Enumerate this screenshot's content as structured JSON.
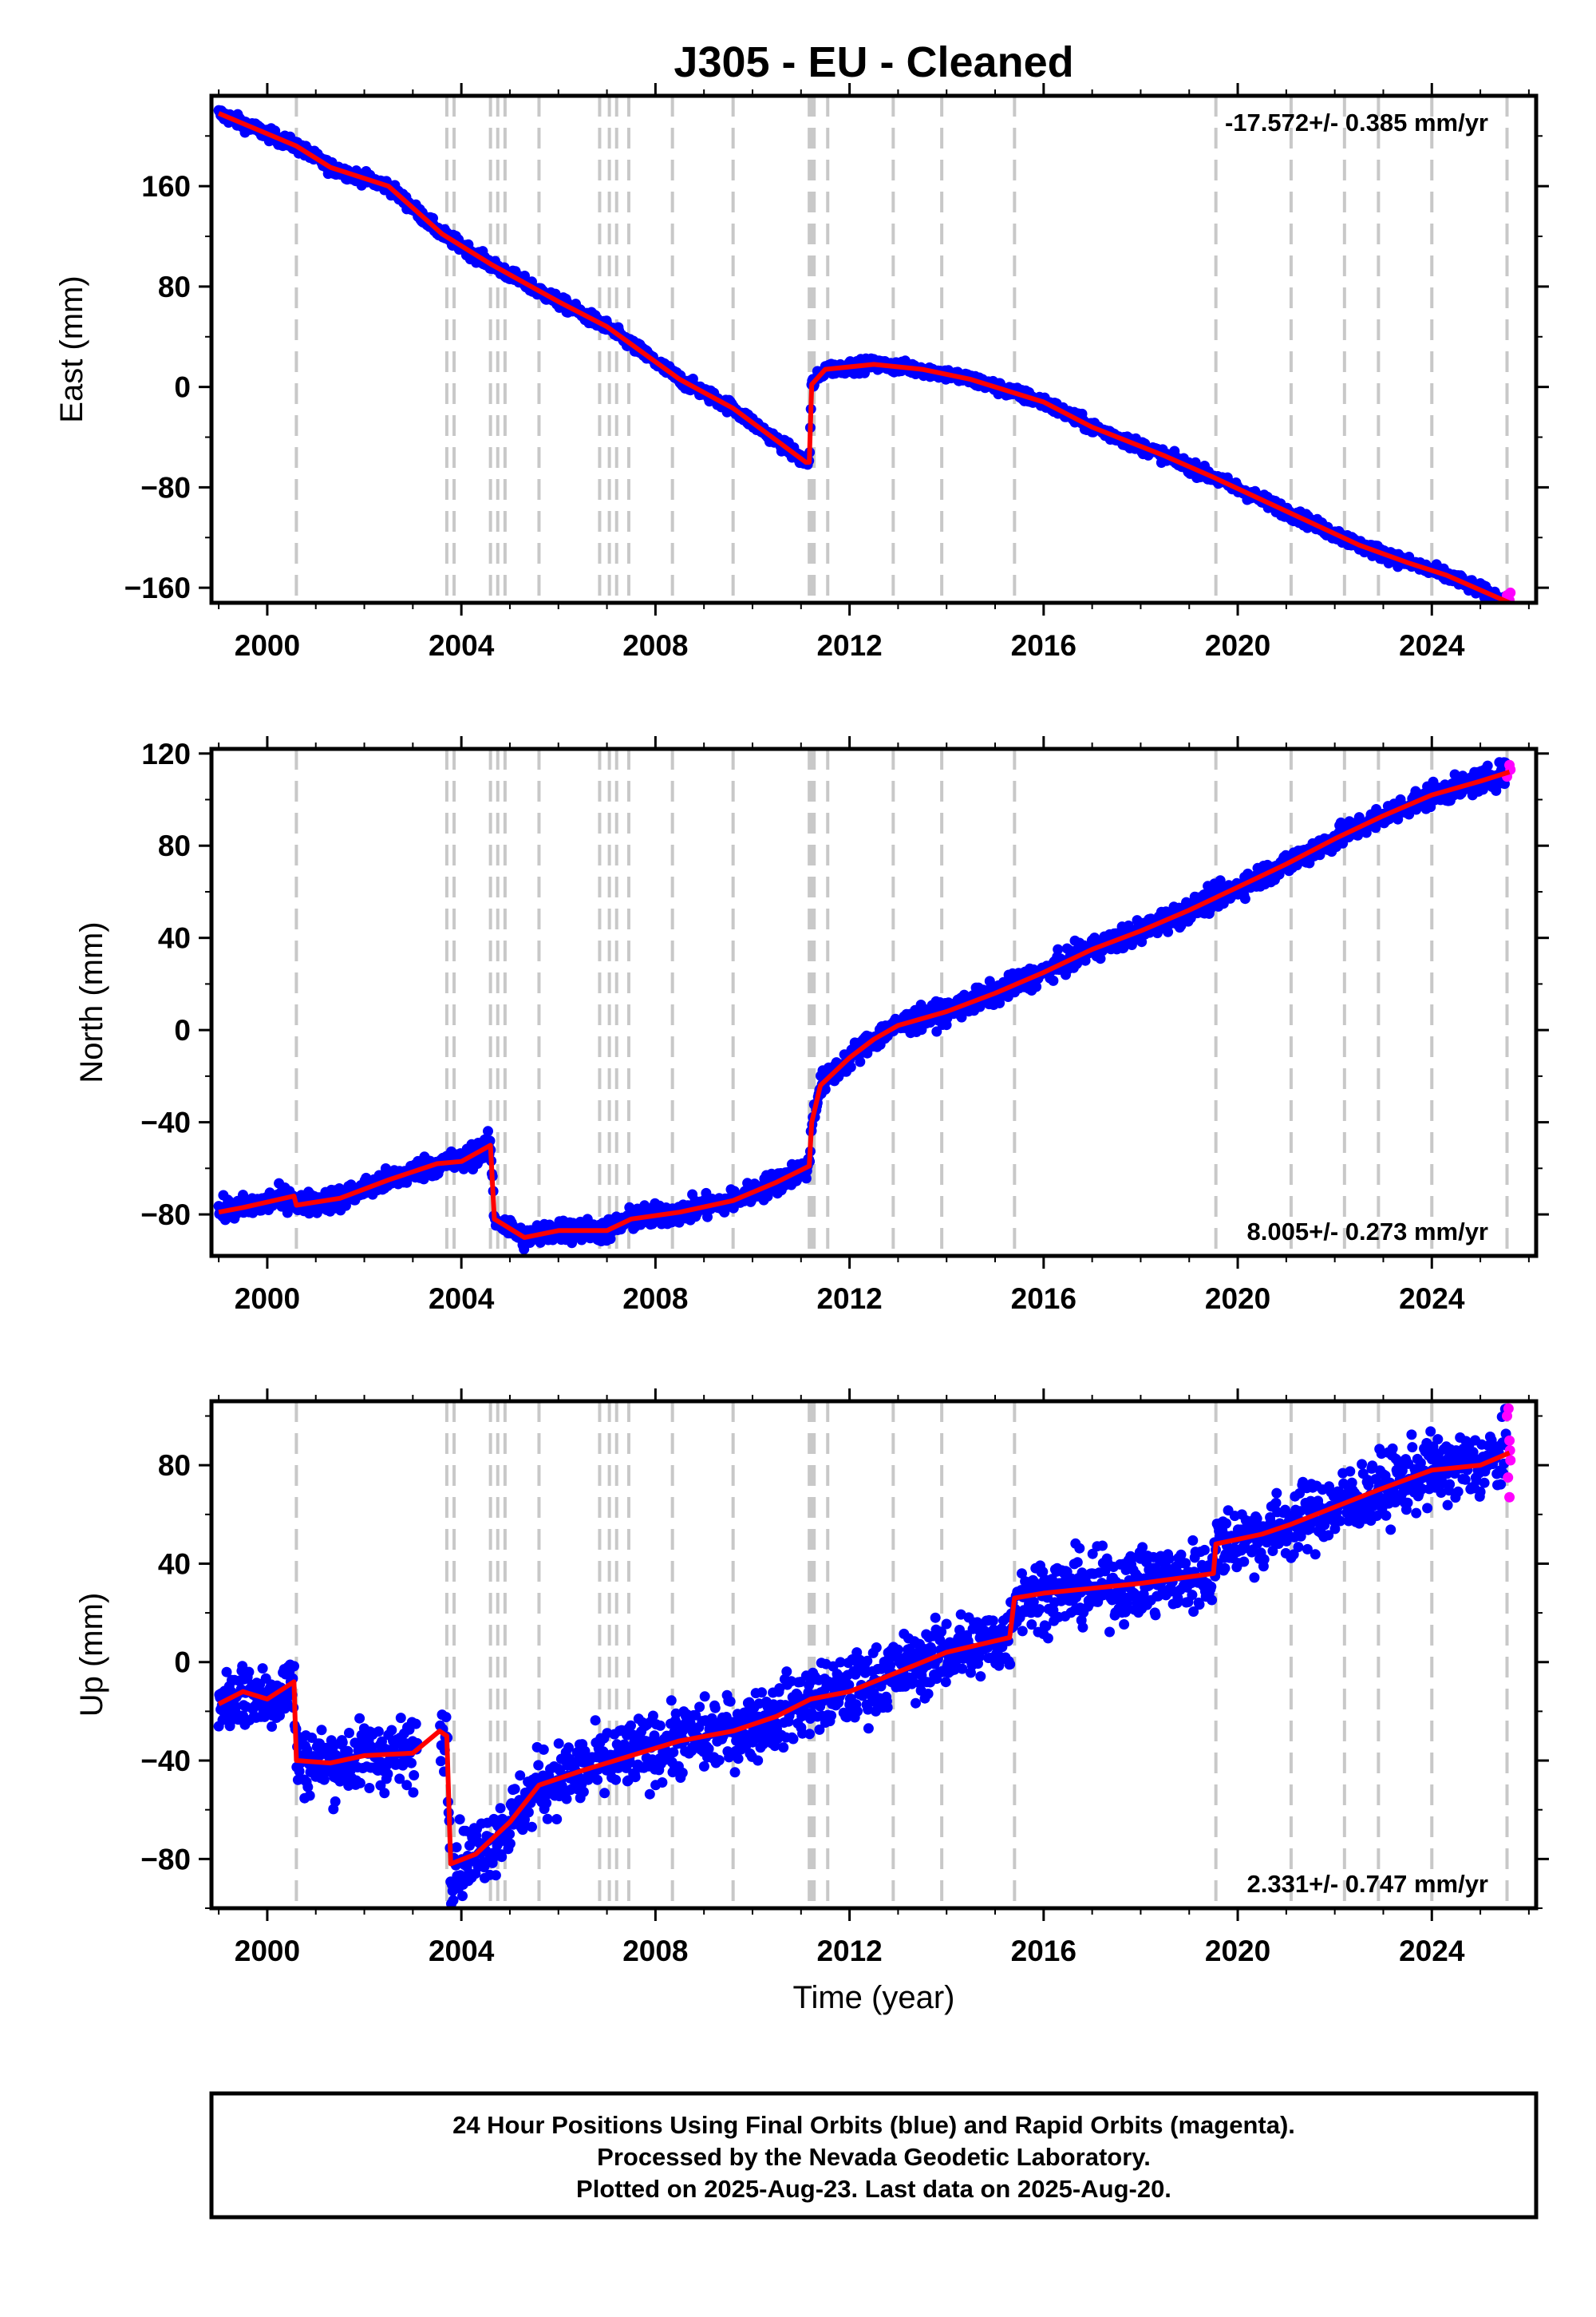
{
  "title": "J305  - EU - Cleaned",
  "xlabel": "Time (year)",
  "footer": {
    "line1": "24 Hour Positions Using Final Orbits (blue) and Rapid Orbits (magenta).",
    "line2": "Processed by the Nevada Geodetic Laboratory.",
    "line3": "Plotted on 2025-Aug-23. Last data on 2025-Aug-20."
  },
  "colors": {
    "final_orbits": "#0000ff",
    "rapid_orbits": "#ff00ff",
    "model": "#ff0000",
    "event_lines": "#c8c8c8"
  },
  "chart_data": {
    "type": "scatter",
    "xlim": [
      1998.85,
      2026.15
    ],
    "x_ticks": [
      2000,
      2004,
      2008,
      2012,
      2016,
      2020,
      2024
    ],
    "grid": false,
    "event_years": [
      2000.6,
      2003.7,
      2003.85,
      2004.6,
      2004.75,
      2004.9,
      2005.6,
      2006.85,
      2007.05,
      2007.2,
      2007.45,
      2008.35,
      2009.6,
      2011.17,
      2011.22,
      2011.27,
      2011.55,
      2012.9,
      2013.9,
      2015.4,
      2019.55,
      2021.1,
      2022.2,
      2022.9,
      2024.0,
      2025.55
    ],
    "panels": [
      {
        "name": "east",
        "ylabel": "East (mm)",
        "ylim": [
          -172,
          232
        ],
        "y_ticks": [
          -160,
          -80,
          0,
          80,
          160
        ],
        "rate_text": "-17.572+/- 0.385 mm/yr",
        "rate_position": "top-right",
        "scatter_noise_mm": 2.5,
        "model": [
          [
            1999.0,
            218
          ],
          [
            2000.6,
            192
          ],
          [
            2001.3,
            175
          ],
          [
            2002.5,
            160
          ],
          [
            2003.6,
            122
          ],
          [
            2004.6,
            98
          ],
          [
            2006.0,
            68
          ],
          [
            2007.0,
            48
          ],
          [
            2008.5,
            6
          ],
          [
            2009.6,
            -17
          ],
          [
            2011.1,
            -60
          ],
          [
            2011.17,
            -60
          ],
          [
            2011.22,
            2
          ],
          [
            2011.5,
            14
          ],
          [
            2012.5,
            18
          ],
          [
            2013.5,
            14
          ],
          [
            2014.5,
            6
          ],
          [
            2015.5,
            -6
          ],
          [
            2016.0,
            -12
          ],
          [
            2017.0,
            -32
          ],
          [
            2018.5,
            -55
          ],
          [
            2019.5,
            -72
          ],
          [
            2020.5,
            -90
          ],
          [
            2021.5,
            -108
          ],
          [
            2022.5,
            -126
          ],
          [
            2023.5,
            -140
          ],
          [
            2024.3,
            -150
          ],
          [
            2025.6,
            -172
          ]
        ],
        "rapid": [
          [
            2025.55,
            -166
          ],
          [
            2025.6,
            -170
          ],
          [
            2025.62,
            -164
          ]
        ]
      },
      {
        "name": "north",
        "ylabel": "North (mm)",
        "ylim": [
          -98,
          122
        ],
        "y_ticks": [
          -80,
          -40,
          0,
          40,
          80,
          120
        ],
        "rate_text": "8.005+/- 0.273 mm/yr",
        "rate_position": "bottom-right",
        "scatter_noise_mm": 2.5,
        "model": [
          [
            1999.0,
            -79
          ],
          [
            1999.5,
            -77
          ],
          [
            2000.55,
            -72
          ],
          [
            2000.6,
            -76
          ],
          [
            2001.5,
            -73
          ],
          [
            2002.5,
            -65
          ],
          [
            2003.5,
            -58
          ],
          [
            2004.0,
            -57
          ],
          [
            2004.6,
            -50
          ],
          [
            2004.68,
            -82
          ],
          [
            2005.3,
            -90
          ],
          [
            2006.0,
            -87
          ],
          [
            2007.0,
            -87
          ],
          [
            2007.5,
            -82
          ],
          [
            2008.5,
            -79
          ],
          [
            2009.6,
            -74
          ],
          [
            2010.5,
            -66
          ],
          [
            2011.17,
            -59
          ],
          [
            2011.22,
            -40
          ],
          [
            2011.4,
            -24
          ],
          [
            2012.0,
            -12
          ],
          [
            2012.5,
            -4
          ],
          [
            2013.0,
            2
          ],
          [
            2014.0,
            8
          ],
          [
            2015.0,
            16
          ],
          [
            2016.0,
            25
          ],
          [
            2017.0,
            35
          ],
          [
            2018.0,
            43
          ],
          [
            2019.0,
            52
          ],
          [
            2020.0,
            62
          ],
          [
            2021.0,
            72
          ],
          [
            2022.0,
            83
          ],
          [
            2023.0,
            93
          ],
          [
            2024.0,
            102
          ],
          [
            2025.0,
            108
          ],
          [
            2025.6,
            112
          ]
        ],
        "rapid": [
          [
            2025.55,
            110
          ],
          [
            2025.6,
            115
          ],
          [
            2025.62,
            113
          ]
        ]
      },
      {
        "name": "up",
        "ylabel": "Up (mm)",
        "ylim": [
          -100,
          106
        ],
        "y_ticks": [
          -80,
          -40,
          0,
          40,
          80
        ],
        "rate_text": "2.331+/- 0.747 mm/yr",
        "rate_position": "bottom-right",
        "scatter_noise_mm": 7,
        "model": [
          [
            1999.0,
            -17
          ],
          [
            1999.5,
            -12
          ],
          [
            2000.0,
            -15
          ],
          [
            2000.55,
            -8
          ],
          [
            2000.6,
            -40
          ],
          [
            2001.3,
            -41
          ],
          [
            2002.0,
            -38
          ],
          [
            2003.0,
            -37
          ],
          [
            2003.55,
            -28
          ],
          [
            2003.7,
            -30
          ],
          [
            2003.78,
            -82
          ],
          [
            2004.3,
            -78
          ],
          [
            2005.0,
            -65
          ],
          [
            2005.6,
            -50
          ],
          [
            2006.5,
            -44
          ],
          [
            2007.5,
            -38
          ],
          [
            2008.5,
            -32
          ],
          [
            2009.6,
            -28
          ],
          [
            2010.5,
            -22
          ],
          [
            2011.2,
            -15
          ],
          [
            2012.0,
            -12
          ],
          [
            2013.0,
            -4
          ],
          [
            2014.0,
            4
          ],
          [
            2015.3,
            10
          ],
          [
            2015.4,
            26
          ],
          [
            2016.0,
            28
          ],
          [
            2017.0,
            30
          ],
          [
            2018.0,
            32
          ],
          [
            2019.5,
            36
          ],
          [
            2019.55,
            48
          ],
          [
            2020.5,
            52
          ],
          [
            2021.1,
            56
          ],
          [
            2022.0,
            63
          ],
          [
            2022.9,
            70
          ],
          [
            2024.0,
            78
          ],
          [
            2025.0,
            80
          ],
          [
            2025.6,
            85
          ]
        ],
        "rapid": [
          [
            2025.55,
            100
          ],
          [
            2025.58,
            103
          ],
          [
            2025.6,
            90
          ],
          [
            2025.62,
            82
          ],
          [
            2025.6,
            67
          ],
          [
            2025.57,
            75
          ],
          [
            2025.61,
            86
          ]
        ]
      }
    ]
  }
}
